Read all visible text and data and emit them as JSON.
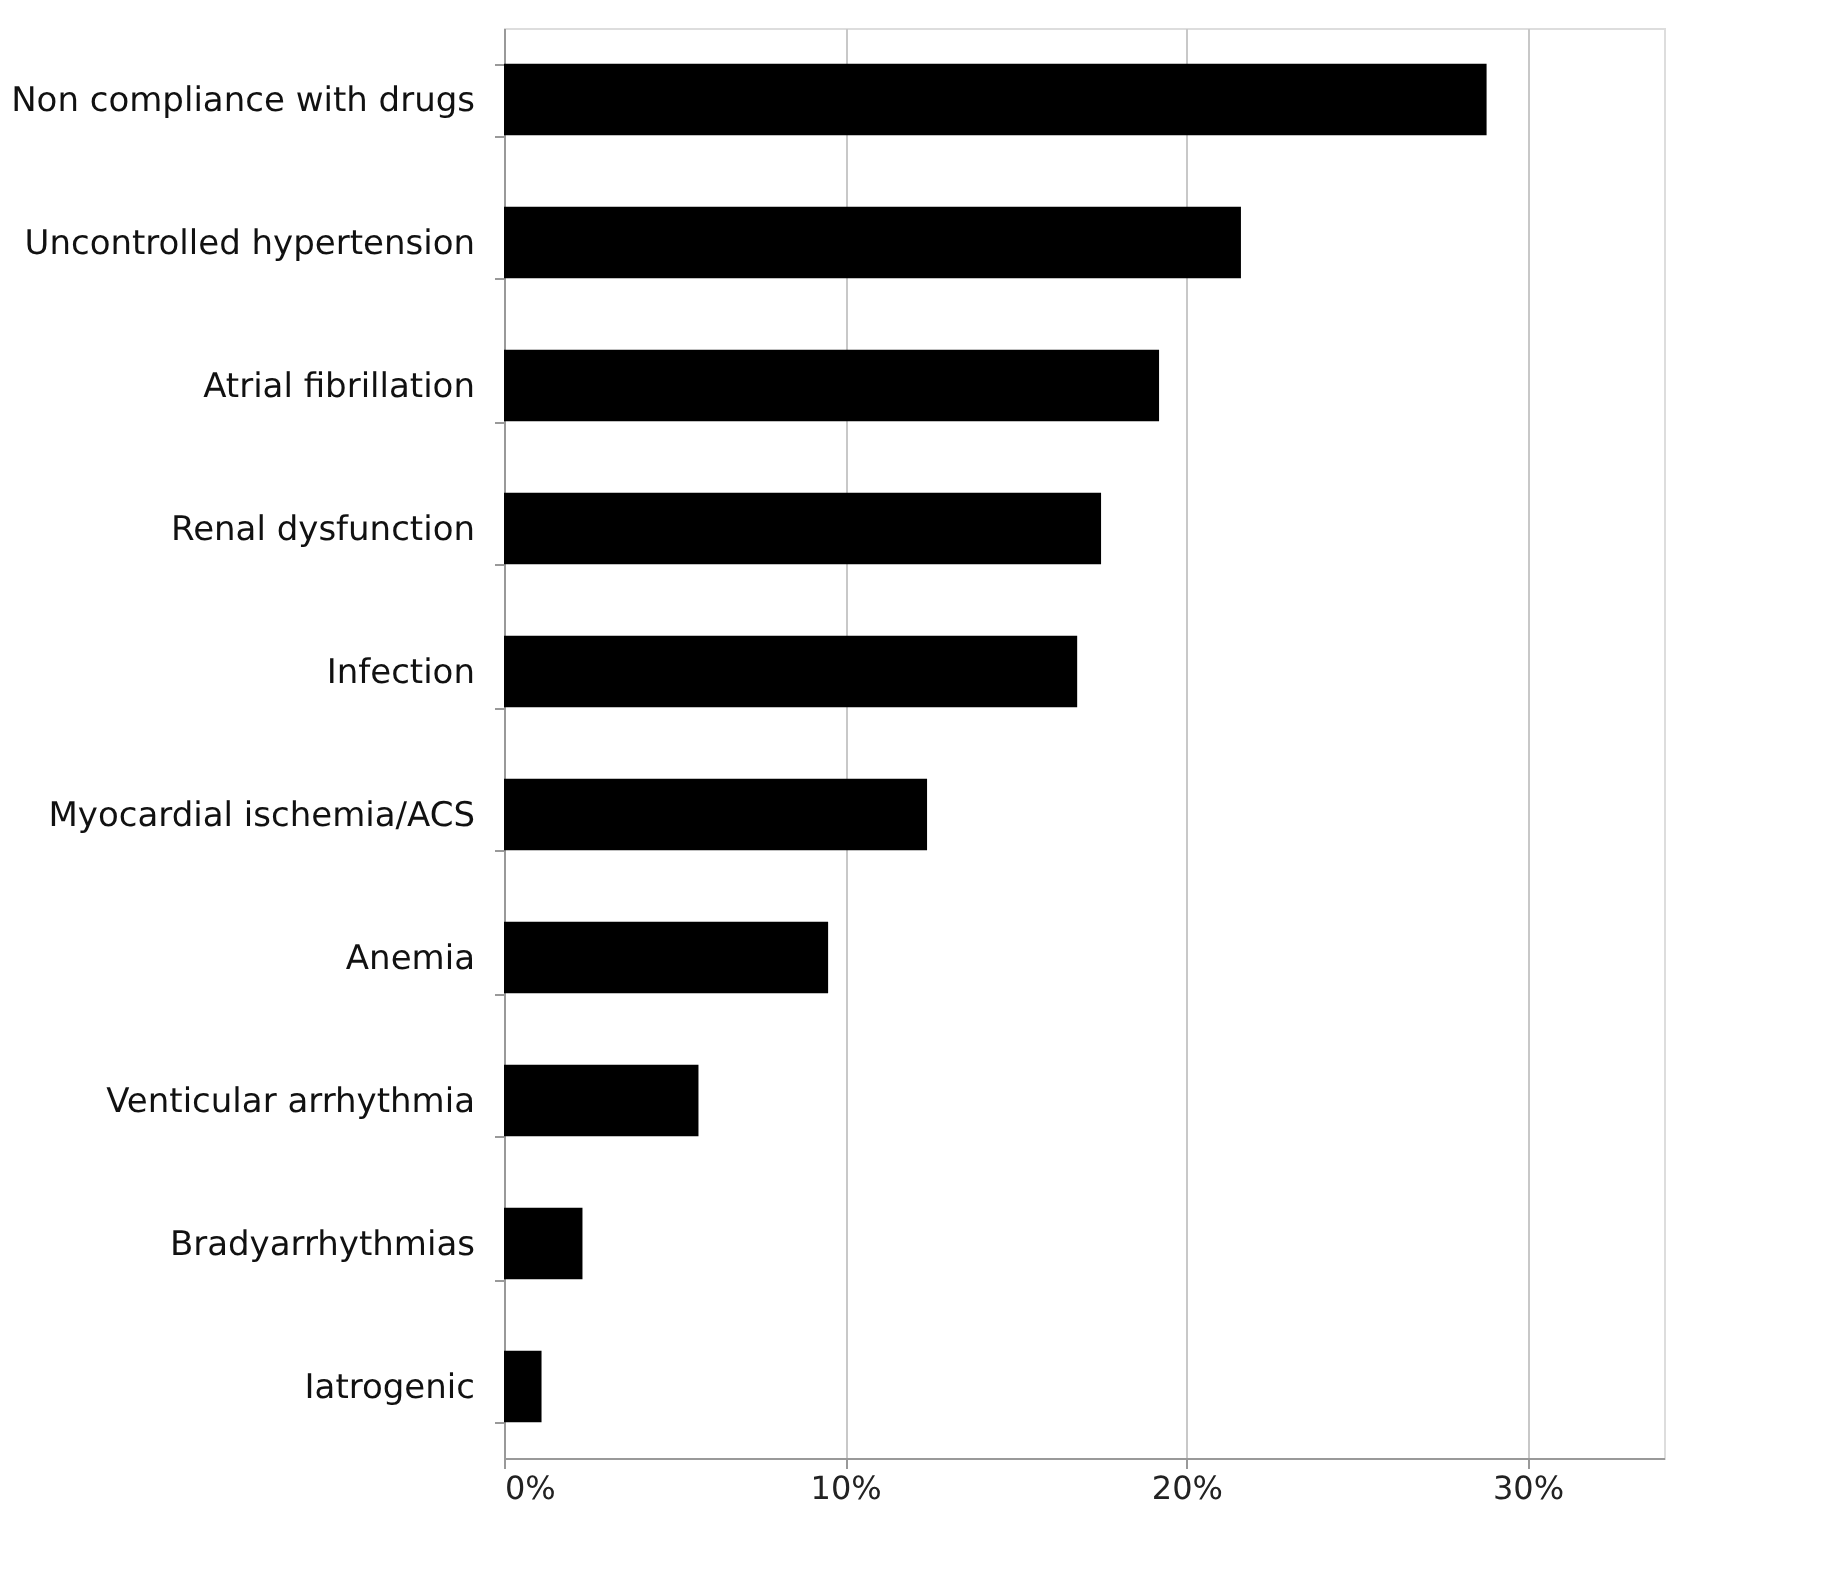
{
  "chart_data": {
    "type": "bar",
    "orientation": "horizontal",
    "categories": [
      "Non compliance with drugs",
      "Uncontrolled hypertension",
      "Atrial fibrillation",
      "Renal dysfunction",
      "Infection",
      "Myocardial ischemia/ACS",
      "Anemia",
      "Venticular arrhythmia",
      "Bradyarrhythmias",
      "Iatrogenic"
    ],
    "values": [
      28.8,
      21.6,
      19.2,
      17.5,
      16.8,
      12.4,
      9.5,
      5.7,
      2.3,
      1.1
    ],
    "color": "#000000",
    "xlim": [
      0,
      34
    ],
    "xticks": [
      {
        "value": 0,
        "label": "0%"
      },
      {
        "value": 10,
        "label": "10%"
      },
      {
        "value": 20,
        "label": "20%"
      },
      {
        "value": 30,
        "label": "30%"
      }
    ],
    "grid": "x"
  }
}
